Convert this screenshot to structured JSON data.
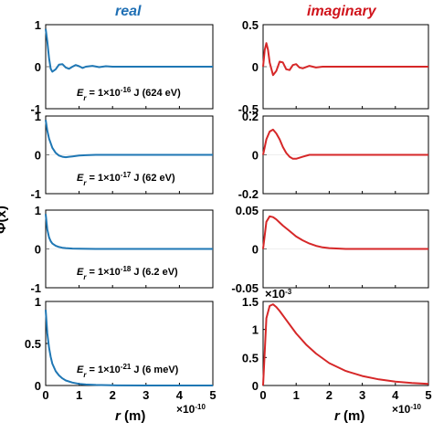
{
  "figure": {
    "column_titles": {
      "real": "real",
      "imaginary": "imaginary"
    },
    "colors": {
      "real": "#1f77b4",
      "imaginary": "#d62728",
      "title_real": "#1f6fb4",
      "title_imaginary": "#d0141c"
    },
    "y_axis_label": "Φ(x)",
    "x_axis_label_symbol": "r",
    "x_axis_label_unit": " (m)",
    "x_exponent": "×10",
    "x_exponent_power": "-10"
  },
  "chart_data": [
    {
      "type": "line",
      "column": "real",
      "row": 0,
      "xlim": [
        0,
        5
      ],
      "ylim": [
        -1,
        1
      ],
      "yticks": [
        "-1",
        "0",
        "1"
      ],
      "xticks": [],
      "annotation": {
        "prefix": "E",
        "sub": "r",
        "mid": " = 1×10",
        "sup": "-16",
        "suffix": " J (624 eV)"
      },
      "series": [
        {
          "x": [
            0,
            0.05,
            0.1,
            0.15,
            0.2,
            0.3,
            0.4,
            0.5,
            0.6,
            0.7,
            0.8,
            0.9,
            1.0,
            1.1,
            1.2,
            1.4,
            1.6,
            1.8,
            2.0,
            2.5,
            3.0,
            4.0,
            5.0
          ],
          "y": [
            0.9,
            0.6,
            0.2,
            -0.05,
            -0.12,
            -0.06,
            0.05,
            0.06,
            -0.02,
            -0.05,
            0.0,
            0.04,
            0.01,
            -0.03,
            0.0,
            0.02,
            -0.01,
            0.01,
            0.0,
            0.0,
            0.0,
            0.0,
            0.0
          ]
        }
      ]
    },
    {
      "type": "line",
      "column": "imaginary",
      "row": 0,
      "xlim": [
        0,
        5
      ],
      "ylim": [
        -0.5,
        0.5
      ],
      "yticks": [
        "-0.5",
        "0",
        "0.5"
      ],
      "xticks": [],
      "series": [
        {
          "x": [
            0,
            0.05,
            0.1,
            0.15,
            0.2,
            0.3,
            0.4,
            0.5,
            0.6,
            0.7,
            0.8,
            0.9,
            1.0,
            1.1,
            1.2,
            1.4,
            1.6,
            1.8,
            2.0,
            2.5,
            3.0,
            4.0,
            5.0
          ],
          "y": [
            0.0,
            0.2,
            0.28,
            0.2,
            0.05,
            -0.1,
            -0.05,
            0.06,
            0.05,
            -0.03,
            -0.04,
            0.02,
            0.03,
            -0.01,
            -0.02,
            0.01,
            -0.01,
            0.0,
            0.0,
            0.0,
            0.0,
            0.0,
            0.0
          ]
        }
      ]
    },
    {
      "type": "line",
      "column": "real",
      "row": 1,
      "xlim": [
        0,
        5
      ],
      "ylim": [
        -1,
        1
      ],
      "yticks": [
        "-1",
        "0",
        "1"
      ],
      "xticks": [],
      "annotation": {
        "prefix": "E",
        "sub": "r",
        "mid": " = 1×10",
        "sup": "-17",
        "suffix": " J (62 eV)"
      },
      "series": [
        {
          "x": [
            0,
            0.05,
            0.1,
            0.2,
            0.3,
            0.4,
            0.5,
            0.6,
            0.7,
            0.8,
            1.0,
            1.2,
            1.5,
            2.0,
            3.0,
            4.0,
            5.0
          ],
          "y": [
            0.9,
            0.62,
            0.42,
            0.18,
            0.05,
            -0.02,
            -0.05,
            -0.06,
            -0.05,
            -0.04,
            -0.02,
            -0.01,
            0.0,
            0.0,
            0.0,
            0.0,
            0.0
          ]
        }
      ]
    },
    {
      "type": "line",
      "column": "imaginary",
      "row": 1,
      "xlim": [
        0,
        5
      ],
      "ylim": [
        -0.2,
        0.2
      ],
      "yticks": [
        "-0.2",
        "0",
        "0.2"
      ],
      "xticks": [],
      "series": [
        {
          "x": [
            0,
            0.1,
            0.2,
            0.3,
            0.4,
            0.5,
            0.6,
            0.7,
            0.8,
            0.9,
            1.0,
            1.1,
            1.2,
            1.4,
            1.6,
            1.8,
            2.0,
            2.5,
            3.0,
            4.0,
            5.0
          ],
          "y": [
            0.0,
            0.08,
            0.12,
            0.13,
            0.11,
            0.08,
            0.04,
            0.01,
            -0.01,
            -0.02,
            -0.02,
            -0.015,
            -0.01,
            0.0,
            0.0,
            0.0,
            0.0,
            0.0,
            0.0,
            0.0,
            0.0
          ]
        }
      ]
    },
    {
      "type": "line",
      "column": "real",
      "row": 2,
      "xlim": [
        0,
        5
      ],
      "ylim": [
        -1,
        1
      ],
      "yticks": [
        "-1",
        "0",
        "1"
      ],
      "xticks": [],
      "annotation": {
        "prefix": "E",
        "sub": "r",
        "mid": " = 1×10",
        "sup": "-18",
        "suffix": " J (6.2 eV)"
      },
      "series": [
        {
          "x": [
            0,
            0.05,
            0.1,
            0.15,
            0.2,
            0.3,
            0.4,
            0.5,
            0.6,
            0.8,
            1.0,
            1.5,
            2.0,
            3.0,
            4.0,
            5.0
          ],
          "y": [
            0.9,
            0.5,
            0.3,
            0.2,
            0.14,
            0.08,
            0.05,
            0.03,
            0.02,
            0.01,
            0.005,
            0.0,
            0.0,
            0.0,
            0.0,
            0.0
          ]
        }
      ]
    },
    {
      "type": "line",
      "column": "imaginary",
      "row": 2,
      "xlim": [
        0,
        5
      ],
      "ylim": [
        -0.05,
        0.05
      ],
      "yticks": [
        "-0.05",
        "0",
        "0.05"
      ],
      "xticks": [],
      "series": [
        {
          "x": [
            0,
            0.1,
            0.2,
            0.3,
            0.4,
            0.5,
            0.6,
            0.8,
            1.0,
            1.2,
            1.4,
            1.6,
            1.8,
            2.0,
            2.5,
            3.0,
            4.0,
            5.0
          ],
          "y": [
            0.0,
            0.035,
            0.042,
            0.041,
            0.038,
            0.034,
            0.03,
            0.023,
            0.016,
            0.011,
            0.007,
            0.004,
            0.002,
            0.001,
            0.0,
            0.0,
            0.0,
            0.0
          ]
        }
      ]
    },
    {
      "type": "line",
      "column": "real",
      "row": 3,
      "xlim": [
        0,
        5
      ],
      "ylim": [
        0,
        1
      ],
      "yticks": [
        "0",
        "0.5",
        "1"
      ],
      "xticks": [
        "0",
        "1",
        "2",
        "3",
        "4",
        "5"
      ],
      "annotation": {
        "prefix": "E",
        "sub": "r",
        "mid": " = 1×10",
        "sup": "-21",
        "suffix": " J (6 meV)"
      },
      "series": [
        {
          "x": [
            0,
            0.05,
            0.1,
            0.15,
            0.2,
            0.3,
            0.4,
            0.5,
            0.6,
            0.8,
            1.0,
            1.2,
            1.5,
            2.0,
            3.0,
            4.0,
            5.0
          ],
          "y": [
            0.9,
            0.62,
            0.45,
            0.34,
            0.26,
            0.17,
            0.12,
            0.085,
            0.06,
            0.035,
            0.02,
            0.012,
            0.006,
            0.002,
            0.0,
            0.0,
            0.0
          ]
        }
      ]
    },
    {
      "type": "line",
      "column": "imaginary",
      "row": 3,
      "xlim": [
        0,
        5
      ],
      "ylim": [
        0,
        1.5
      ],
      "yticks": [
        "0",
        "0.5",
        "1",
        "1.5"
      ],
      "xticks": [
        "0",
        "1",
        "2",
        "3",
        "4",
        "5"
      ],
      "y_exponent": "×10",
      "y_exponent_power": "-3",
      "series": [
        {
          "x": [
            0,
            0.1,
            0.2,
            0.3,
            0.4,
            0.5,
            0.7,
            1.0,
            1.3,
            1.6,
            2.0,
            2.5,
            3.0,
            3.5,
            4.0,
            4.5,
            5.0
          ],
          "y": [
            0.0,
            1.2,
            1.42,
            1.45,
            1.4,
            1.33,
            1.17,
            0.93,
            0.73,
            0.57,
            0.4,
            0.26,
            0.17,
            0.11,
            0.07,
            0.045,
            0.03
          ]
        }
      ]
    }
  ]
}
